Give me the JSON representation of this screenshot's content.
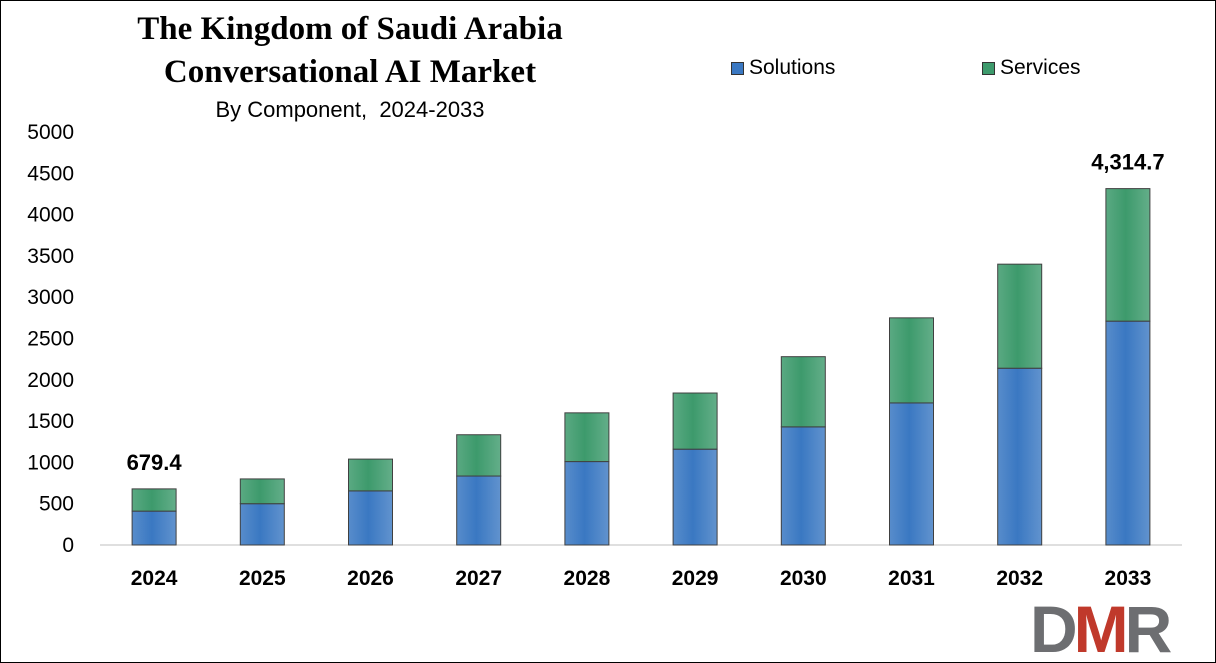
{
  "chart_data": {
    "type": "bar",
    "stacked": true,
    "title": "The Kingdom of Saudi Arabia Conversational AI Market",
    "title_lines": [
      "The Kingdom of Saudi Arabia",
      "Conversational AI Market"
    ],
    "subtitle": "By Component,  2024-2033",
    "categories": [
      "2024",
      "2025",
      "2026",
      "2027",
      "2028",
      "2029",
      "2030",
      "2031",
      "2032",
      "2033"
    ],
    "series": [
      {
        "name": "Solutions",
        "color": "#3a78c2",
        "values": [
          410,
          500,
          655,
          835,
          1010,
          1160,
          1430,
          1720,
          2140,
          2710
        ]
      },
      {
        "name": "Services",
        "color": "#3d9a6c",
        "values": [
          269.4,
          300,
          385,
          500,
          590,
          680,
          850,
          1030,
          1260,
          1604.7
        ]
      }
    ],
    "data_labels": [
      {
        "category": "2024",
        "text": "679.4"
      },
      {
        "category": "2033",
        "text": "4,314.7"
      }
    ],
    "y_ticks": [
      "0",
      "500",
      "1000",
      "1500",
      "2000",
      "2500",
      "3000",
      "3500",
      "4000",
      "4500",
      "5000"
    ],
    "ylim": [
      0,
      5000
    ],
    "xlabel": "",
    "ylabel": "",
    "grid": false,
    "legend_position": "top"
  },
  "logo": {
    "text": "DMR",
    "colors": [
      "#6d6e71",
      "#c0392b"
    ]
  }
}
